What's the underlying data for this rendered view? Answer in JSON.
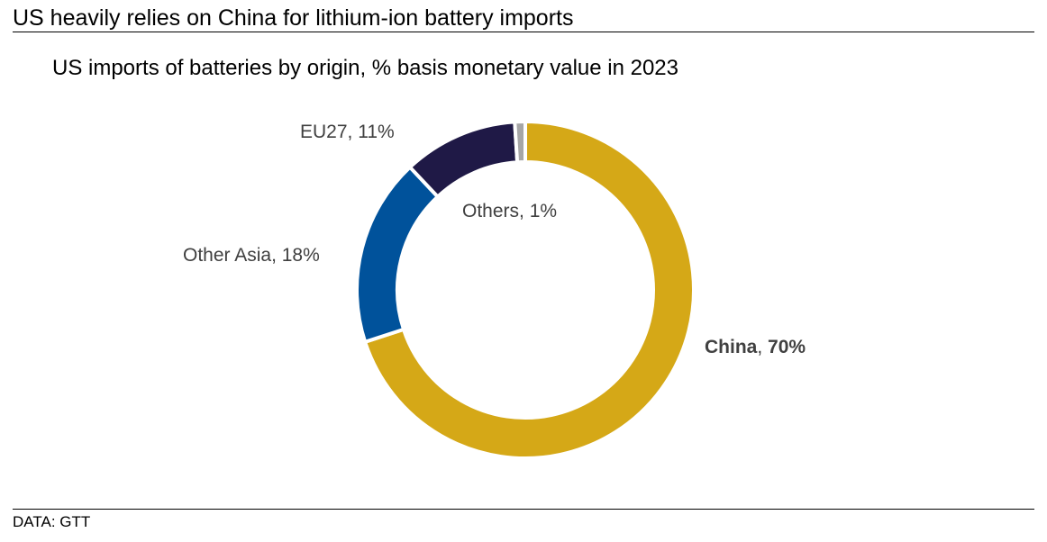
{
  "title": "US heavily relies on China for lithium-ion battery imports",
  "source": "DATA: GTT",
  "chart_data": {
    "type": "pie",
    "donut": true,
    "title": "US imports of batteries by origin, % basis monetary value in 2023",
    "slices": [
      {
        "name": "China",
        "value": 70,
        "label_value": "70%",
        "color": "#D5A817",
        "bold": true
      },
      {
        "name": "Other Asia",
        "value": 18,
        "label_value": "18%",
        "color": "#00529B"
      },
      {
        "name": "EU27",
        "value": 11,
        "label_value": "11%",
        "color": "#1F1946"
      },
      {
        "name": "Others",
        "value": 1,
        "label_value": "1%",
        "color": "#A6A6A6"
      }
    ]
  }
}
